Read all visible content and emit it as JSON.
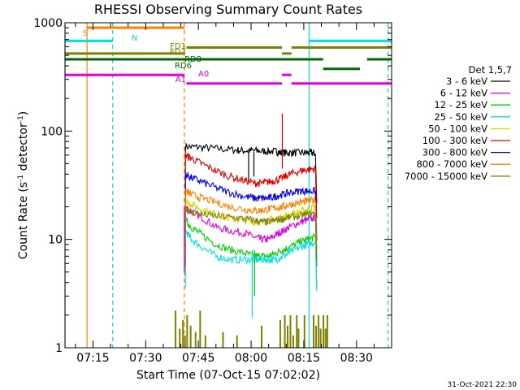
{
  "chart_data": {
    "type": "line",
    "title": "RHESSI Observing Summary Count Rates",
    "xlabel": "Start Time (07-Oct-15 07:02:02)",
    "ylabel_main": "Count Rate (s",
    "ylabel_sup1": "-1",
    "ylabel_mid": " detector",
    "ylabel_sup2": "-1",
    "ylabel_end": ")",
    "y_scale": "log",
    "ylim": [
      1,
      1000
    ],
    "xlim_minutes": [
      7.03,
      100.0
    ],
    "x_ticks": [
      {
        "label": "07:15",
        "minute": 15
      },
      {
        "label": "07:30",
        "minute": 30
      },
      {
        "label": "07:45",
        "minute": 45
      },
      {
        "label": "08:00",
        "minute": 60
      },
      {
        "label": "08:15",
        "minute": 75
      },
      {
        "label": "08:30",
        "minute": 90
      }
    ],
    "y_ticks": [
      {
        "label": "1",
        "value": 1
      },
      {
        "label": "10",
        "value": 10
      },
      {
        "label": "100",
        "value": 100
      },
      {
        "label": "1000",
        "value": 1000
      }
    ],
    "footer_date": "31-Oct-2021 22:30",
    "legend": {
      "title": "Det 1,5,7",
      "placement": "right",
      "entries": [
        {
          "label": "3 - 6 keV",
          "color": "#000000"
        },
        {
          "label": "6 - 12 keV",
          "color": "#e000e0"
        },
        {
          "label": "12 - 25 keV",
          "color": "#00d000"
        },
        {
          "label": "25 - 50 keV",
          "color": "#00e0e0"
        },
        {
          "label": "50 - 100 keV",
          "color": "#d8d800"
        },
        {
          "label": "100 - 300 keV",
          "color": "#e00000"
        },
        {
          "label": "300 - 800 keV",
          "color": "#0000e0"
        },
        {
          "label": "800 - 7000 keV",
          "color": "#ff8000"
        },
        {
          "label": "7000 - 15000 keV",
          "color": "#808000"
        }
      ]
    },
    "series": [
      {
        "name": "3 - 6 keV",
        "color": "#000000",
        "x": [
          41.3,
          45,
          50,
          55,
          58,
          61,
          64,
          67,
          68.2,
          70,
          72,
          75,
          77,
          78.3
        ],
        "y": [
          72,
          71,
          69,
          67,
          66,
          66,
          65,
          65,
          63,
          63,
          63,
          63,
          63,
          62
        ]
      },
      {
        "name": "6 - 12 keV",
        "color": "#e000e0",
        "x": [
          41.3,
          43,
          46,
          50,
          54,
          58,
          61,
          63,
          65,
          67,
          69,
          71,
          74,
          76,
          78.3
        ],
        "y": [
          20,
          18,
          16,
          13,
          12,
          11.5,
          10.5,
          10,
          10,
          11,
          12,
          13,
          14.5,
          15,
          16
        ]
      },
      {
        "name": "12 - 25 keV",
        "color": "#00d000",
        "x": [
          41.3,
          43,
          46,
          50,
          54,
          58,
          61,
          63,
          65,
          67,
          69,
          71,
          74,
          76,
          78.3
        ],
        "y": [
          15,
          13,
          11,
          9,
          8,
          7.5,
          7,
          7,
          7,
          7.5,
          8,
          8.5,
          9.5,
          10,
          10.5
        ]
      },
      {
        "name": "25 - 50 keV",
        "color": "#00e0e0",
        "x": [
          41.3,
          43,
          46,
          50,
          54,
          58,
          61,
          63,
          65,
          67,
          69,
          71,
          74,
          76,
          78.3
        ],
        "y": [
          12,
          10,
          8.5,
          7,
          6.5,
          6.5,
          6.5,
          6.5,
          6.5,
          6.5,
          7,
          7.5,
          8.5,
          9,
          9.5
        ]
      },
      {
        "name": "50 - 100 keV",
        "color": "#d8d800",
        "x": [
          41.3,
          43,
          46,
          50,
          54,
          58,
          61,
          63,
          65,
          67,
          69,
          71,
          74,
          76,
          78.3
        ],
        "y": [
          23,
          21,
          19,
          17,
          15.5,
          15,
          14.5,
          14.5,
          15,
          15.5,
          16,
          17,
          18,
          19,
          20
        ]
      },
      {
        "name": "100 - 300 keV",
        "color": "#e00000",
        "x": [
          41.3,
          43,
          46,
          50,
          54,
          58,
          61,
          63,
          65,
          67,
          69,
          71,
          74,
          76,
          78.3
        ],
        "y": [
          60,
          56,
          50,
          43,
          38,
          35,
          33,
          33,
          34,
          35,
          37,
          40,
          43,
          44,
          45
        ]
      },
      {
        "name": "300 - 800 keV",
        "color": "#0000e0",
        "x": [
          41.3,
          43,
          46,
          50,
          54,
          58,
          61,
          63,
          65,
          67,
          69,
          71,
          74,
          76,
          78.3
        ],
        "y": [
          40,
          37,
          34,
          30,
          27,
          25,
          24,
          24,
          24,
          25,
          26,
          27,
          28,
          28,
          28
        ]
      },
      {
        "name": "800 - 7000 keV",
        "color": "#ff8000",
        "x": [
          41.3,
          43,
          46,
          50,
          54,
          58,
          61,
          63,
          65,
          67,
          69,
          71,
          74,
          76,
          78.3
        ],
        "y": [
          28,
          26,
          24,
          22,
          20,
          19,
          18.5,
          18.5,
          19,
          19.5,
          20,
          21,
          22,
          22.5,
          23
        ]
      },
      {
        "name": "7000 - 15000 keV",
        "color": "#808000",
        "x": [
          41.3,
          43,
          46,
          50,
          54,
          58,
          61,
          63,
          65,
          67,
          69,
          71,
          74,
          76,
          78.3
        ],
        "y": [
          19,
          18,
          17,
          16.5,
          16,
          15.5,
          15,
          14.5,
          14.5,
          15,
          15.5,
          16,
          16.5,
          17,
          17.5
        ]
      }
    ],
    "spikes": [
      {
        "color": "#00e0e0",
        "x": 60.3,
        "y_from": 8,
        "y_to": 1.9
      },
      {
        "color": "#00d000",
        "x": 61.0,
        "y_from": 8,
        "y_to": 3
      },
      {
        "color": "#e00000",
        "x": 68.9,
        "y_from": 45,
        "y_to": 145
      },
      {
        "color": "#000000",
        "x": 59.3,
        "y_from": 65,
        "y_to": 35
      },
      {
        "color": "#000000",
        "x": 60.8,
        "y_from": 65,
        "y_to": 38
      },
      {
        "color": "#e000e0",
        "x": 41.0,
        "y_from": 20,
        "y_to": 5
      }
    ],
    "flag_bars": [
      {
        "label": "S",
        "color": "#ff8000",
        "y": 900,
        "segments": [
          [
            13.3,
            41.0
          ]
        ]
      },
      {
        "label": "N",
        "color": "#00e0e0",
        "y": 680,
        "segments": [
          [
            7.03,
            20.6
          ],
          [
            76.5,
            99.9
          ]
        ]
      },
      {
        "label": "FD1",
        "color": "#808000",
        "y": 590,
        "segments": [
          [
            41.6,
            68.8
          ],
          [
            71.5,
            99.9
          ]
        ]
      },
      {
        "label": "FD3",
        "color": "#808000",
        "y": 520,
        "segments": [
          [
            7.03,
            41.0
          ],
          [
            68.8,
            71.5
          ]
        ]
      },
      {
        "label": "RD8",
        "color": "#006600",
        "y": 460,
        "segments": [
          [
            7.03,
            80.5
          ],
          [
            93.0,
            99.9
          ]
        ]
      },
      {
        "label": "RD6",
        "color": "#006600",
        "y": 375,
        "segments": [
          [
            80.5,
            91.0
          ]
        ]
      },
      {
        "label": "A0",
        "color": "#e000e0",
        "y": 330,
        "segments": [
          [
            7.03,
            41.0
          ],
          [
            68.8,
            71.5
          ]
        ]
      },
      {
        "label": "A1",
        "color": "#e000e0",
        "y": 275,
        "segments": [
          [
            41.6,
            68.8
          ],
          [
            71.5,
            99.9
          ]
        ]
      }
    ],
    "vlines": [
      {
        "minute": 7.03,
        "color": "#00e0e0",
        "dashed": false
      },
      {
        "minute": 13.3,
        "color": "#ff8000",
        "dashed": false
      },
      {
        "minute": 20.6,
        "color": "#00e0e0",
        "dashed": true
      },
      {
        "minute": 41.0,
        "color": "#ff8000",
        "dashed": true
      },
      {
        "minute": 76.5,
        "color": "#00e0e0",
        "dashed": false
      },
      {
        "minute": 99.0,
        "color": "#00e0e0",
        "dashed": true
      }
    ],
    "olive_bars": [
      {
        "minute": 38.5,
        "top": 2.2
      },
      {
        "minute": 39.7,
        "top": 1.5
      },
      {
        "minute": 40.6,
        "top": 1.8
      },
      {
        "minute": 41.2,
        "top": 1.3
      },
      {
        "minute": 41.8,
        "top": 2.0
      },
      {
        "minute": 42.8,
        "top": 1.6
      },
      {
        "minute": 44.2,
        "top": 1.4
      },
      {
        "minute": 45.5,
        "top": 2.2
      },
      {
        "minute": 47.0,
        "top": 1.3
      },
      {
        "minute": 52.0,
        "top": 1.4
      },
      {
        "minute": 56.0,
        "top": 1.3
      },
      {
        "minute": 63.0,
        "top": 1.6
      },
      {
        "minute": 68.3,
        "top": 1.8
      },
      {
        "minute": 69.6,
        "top": 2.0
      },
      {
        "minute": 70.4,
        "top": 1.6
      },
      {
        "minute": 71.2,
        "top": 2.0
      },
      {
        "minute": 72.0,
        "top": 1.3
      },
      {
        "minute": 73.0,
        "top": 2.0
      },
      {
        "minute": 73.5,
        "top": 1.5
      },
      {
        "minute": 75.2,
        "top": 2.0
      },
      {
        "minute": 77.8,
        "top": 2.0
      },
      {
        "minute": 78.5,
        "top": 1.6
      },
      {
        "minute": 79.2,
        "top": 2.0
      },
      {
        "minute": 79.8,
        "top": 1.5
      },
      {
        "minute": 80.6,
        "top": 2.0
      },
      {
        "minute": 81.2,
        "top": 1.5
      },
      {
        "minute": 81.7,
        "top": 2.0
      }
    ]
  }
}
